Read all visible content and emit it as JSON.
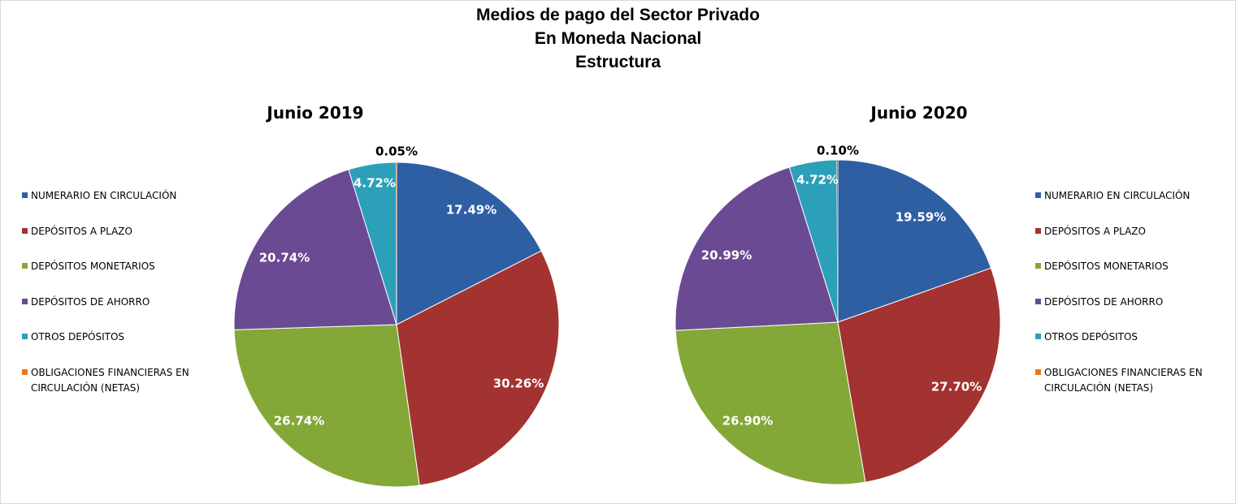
{
  "title_lines": [
    "Medios de pago del Sector Privado",
    "En Moneda Nacional",
    "Estructura"
  ],
  "colors": {
    "NUMERARIO EN CIRCULACIÓN": "#2e5fa3",
    "DEPÓSITOS A PLAZO": "#a33330",
    "DEPÓSITOS MONETARIOS": "#84a837",
    "DEPÓSITOS DE AHORRO": "#6b4a94",
    "OTROS DEPÓSITOS": "#2ca0b8",
    "OBLIGACIONES FINANCIERAS EN CIRCULACIÓN (NETAS)": "#e8791e"
  },
  "legend_left": [
    [
      "NUMERARIO EN CIRCULACIÓN"
    ],
    [
      "DEPÓSITOS A PLAZO"
    ],
    [
      "DEPÓSITOS MONETARIOS"
    ],
    [
      "DEPÓSITOS DE AHORRO"
    ],
    [
      "OTROS DEPÓSITOS"
    ],
    [
      "OBLIGACIONES FINANCIERAS EN",
      "CIRCULACIÓN (NETAS)"
    ]
  ],
  "legend_right": [
    [
      "NUMERARIO EN CIRCULACIÓN"
    ],
    [
      "DEPÓSITOS A PLAZO"
    ],
    [
      "DEPÓSITOS MONETARIOS"
    ],
    [
      "DEPÓSITOS DE AHORRO"
    ],
    [
      "OTROS DEPÓSITOS"
    ],
    [
      "OBLIGACIONES FINANCIERAS EN",
      "CIRCULACIÓN (NETAS)"
    ]
  ],
  "chart_data": [
    {
      "type": "pie",
      "title": "Junio 2019",
      "legend": "left",
      "slices": [
        {
          "name": "NUMERARIO EN CIRCULACIÓN",
          "value": 17.49,
          "label": "17.49%"
        },
        {
          "name": "DEPÓSITOS A PLAZO",
          "value": 30.26,
          "label": "30.26%"
        },
        {
          "name": "DEPÓSITOS MONETARIOS",
          "value": 26.74,
          "label": "26.74%"
        },
        {
          "name": "DEPÓSITOS DE AHORRO",
          "value": 20.74,
          "label": "20.74%"
        },
        {
          "name": "OTROS DEPÓSITOS",
          "value": 4.72,
          "label": "4.72%"
        },
        {
          "name": "OBLIGACIONES FINANCIERAS EN CIRCULACIÓN (NETAS)",
          "value": 0.05,
          "label": "0.05%"
        }
      ]
    },
    {
      "type": "pie",
      "title": "Junio 2020",
      "legend": "right",
      "slices": [
        {
          "name": "NUMERARIO EN CIRCULACIÓN",
          "value": 19.59,
          "label": "19.59%"
        },
        {
          "name": "DEPÓSITOS A PLAZO",
          "value": 27.7,
          "label": "27.70%"
        },
        {
          "name": "DEPÓSITOS MONETARIOS",
          "value": 26.9,
          "label": "26.90%"
        },
        {
          "name": "DEPÓSITOS DE AHORRO",
          "value": 20.99,
          "label": "20.99%"
        },
        {
          "name": "OTROS DEPÓSITOS",
          "value": 4.72,
          "label": "4.72%"
        },
        {
          "name": "OBLIGACIONES FINANCIERAS EN CIRCULACIÓN (NETAS)",
          "value": 0.1,
          "label": "0.10%"
        }
      ]
    }
  ]
}
